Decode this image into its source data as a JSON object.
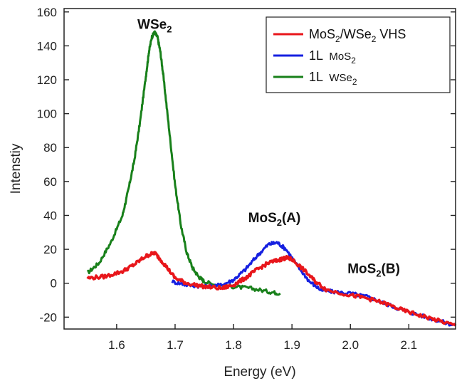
{
  "chart_data": {
    "type": "line",
    "xlabel": "Energy (eV)",
    "ylabel": "Intenstiy",
    "xlim": [
      1.51,
      2.18
    ],
    "ylim": [
      -27,
      162
    ],
    "x_ticks": [
      1.6,
      1.7,
      1.8,
      1.9,
      2.0,
      2.1
    ],
    "x_tick_labels": [
      "1.6",
      "1.7",
      "1.8",
      "1.9",
      "2.0",
      "2.1"
    ],
    "y_ticks": [
      -20,
      0,
      20,
      40,
      60,
      80,
      100,
      120,
      140,
      160
    ],
    "y_tick_labels": [
      "-20",
      "0",
      "20",
      "40",
      "60",
      "80",
      "100",
      "120",
      "140",
      "160"
    ],
    "legend": {
      "placement": "top-right",
      "entries": [
        {
          "pre": "MoS",
          "sub": "2",
          "mid": "/WSe",
          "sub2": "2",
          "post": " VHS",
          "color": "#e8161b"
        },
        {
          "pre": "1L ",
          "small": "MoS",
          "sub": "2",
          "color": "#1620e0"
        },
        {
          "pre": "1L ",
          "small": "WSe",
          "sub": "2",
          "color": "#18801a"
        }
      ]
    },
    "annotations": [
      {
        "main": "WSe",
        "sub": "2",
        "x": 1.665,
        "y": 150
      },
      {
        "main": "MoS",
        "sub": "2",
        "post": "(A)",
        "x": 1.87,
        "y": 36
      },
      {
        "main": "MoS",
        "sub": "2",
        "post": "(B)",
        "x": 2.04,
        "y": 6
      }
    ],
    "series": [
      {
        "name": "1L WSe2",
        "color": "#18801a",
        "x": [
          1.55,
          1.57,
          1.59,
          1.61,
          1.62,
          1.63,
          1.64,
          1.65,
          1.655,
          1.66,
          1.665,
          1.67,
          1.675,
          1.68,
          1.69,
          1.7,
          1.71,
          1.72,
          1.73,
          1.74,
          1.75,
          1.77,
          1.8,
          1.83,
          1.86,
          1.88
        ],
        "y": [
          6,
          12,
          24,
          40,
          55,
          72,
          95,
          122,
          136,
          145,
          148,
          145,
          136,
          122,
          90,
          58,
          34,
          18,
          9,
          4,
          1,
          -1,
          -2,
          -3,
          -5,
          -6
        ]
      },
      {
        "name": "1L MoS2",
        "color": "#1620e0",
        "x": [
          1.695,
          1.72,
          1.75,
          1.78,
          1.8,
          1.82,
          1.84,
          1.86,
          1.875,
          1.89,
          1.91,
          1.93,
          1.95,
          1.97,
          2.0,
          2.03,
          2.06,
          2.09,
          2.12,
          2.15,
          2.18
        ],
        "y": [
          1,
          -1,
          -2,
          -1,
          2,
          8,
          16,
          23,
          24,
          20,
          10,
          1,
          -4,
          -5,
          -6,
          -8,
          -12,
          -16,
          -19,
          -22,
          -25
        ]
      },
      {
        "name": "MoS2/WSe2 VHS",
        "color": "#e8161b",
        "x": [
          1.55,
          1.58,
          1.61,
          1.63,
          1.65,
          1.665,
          1.68,
          1.7,
          1.72,
          1.75,
          1.78,
          1.8,
          1.82,
          1.84,
          1.86,
          1.88,
          1.89,
          1.9,
          1.92,
          1.94,
          1.96,
          2.0,
          2.03,
          2.06,
          2.09,
          2.12,
          2.15,
          2.18
        ],
        "y": [
          3,
          4,
          7,
          11,
          16,
          18,
          12,
          3,
          0,
          -2,
          -3,
          -1,
          3,
          8,
          12,
          14,
          15,
          14,
          8,
          1,
          -4,
          -7,
          -9,
          -12,
          -16,
          -19,
          -22,
          -25
        ]
      }
    ]
  }
}
